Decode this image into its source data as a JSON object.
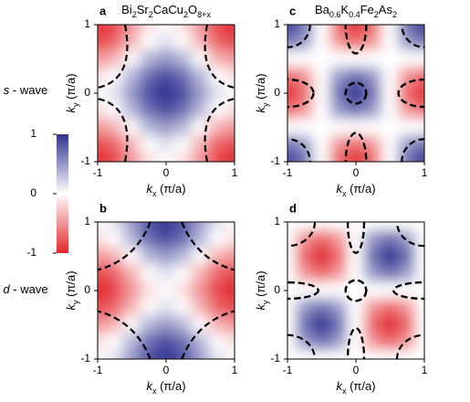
{
  "chart_data": [
    {
      "type": "heatmap",
      "panel_label": "a",
      "title_parts": [
        "Bi",
        "2",
        "Sr",
        "2",
        "CaCu",
        "2",
        "O",
        "8+x"
      ],
      "x_label_parts": [
        "k",
        "x",
        " (π/a)"
      ],
      "y_label_parts": [
        "k",
        "y",
        " (π/a)"
      ],
      "xlim": [
        -1,
        1
      ],
      "ylim": [
        -1,
        1
      ],
      "xticks": [
        -1,
        0,
        1
      ],
      "yticks": [
        -1,
        0,
        1
      ],
      "x": [
        -1,
        -0.75,
        -0.5,
        -0.25,
        0,
        0.25,
        0.5,
        0.75,
        1
      ],
      "y": [
        1,
        0.75,
        0.5,
        0.25,
        0,
        -0.25,
        -0.5,
        -0.75,
        -1
      ],
      "values": [
        [
          -1,
          -0.86,
          -0.5,
          -0.15,
          0,
          -0.15,
          -0.5,
          -0.86,
          -1
        ],
        [
          -0.86,
          -0.71,
          -0.36,
          0,
          0.15,
          0,
          -0.36,
          -0.71,
          -0.86
        ],
        [
          -0.5,
          -0.36,
          0,
          0.36,
          0.5,
          0.36,
          0,
          -0.36,
          -0.5
        ],
        [
          -0.15,
          0,
          0.36,
          0.71,
          0.86,
          0.71,
          0.36,
          0,
          -0.15
        ],
        [
          0,
          0.15,
          0.5,
          0.86,
          1,
          0.86,
          0.5,
          0.15,
          0
        ],
        [
          -0.15,
          0,
          0.36,
          0.71,
          0.86,
          0.71,
          0.36,
          0,
          -0.15
        ],
        [
          -0.5,
          -0.36,
          0,
          0.36,
          0.5,
          0.36,
          0,
          -0.36,
          -0.5
        ],
        [
          -0.86,
          -0.71,
          -0.36,
          0,
          0.15,
          0,
          -0.36,
          -0.71,
          -0.86
        ],
        [
          -1,
          -0.86,
          -0.5,
          -0.15,
          0,
          -0.15,
          -0.5,
          -0.86,
          -1
        ]
      ]
    },
    {
      "type": "heatmap",
      "panel_label": "b",
      "x_label_parts": [
        "k",
        "x",
        " (π/a)"
      ],
      "y_label_parts": [
        "k",
        "y",
        " (π/a)"
      ],
      "xlim": [
        -1,
        1
      ],
      "ylim": [
        -1,
        1
      ],
      "xticks": [
        -1,
        0,
        1
      ],
      "yticks": [
        -1,
        0,
        1
      ],
      "x": [
        -1,
        -0.75,
        -0.5,
        -0.25,
        0,
        0.25,
        0.5,
        0.75,
        1
      ],
      "y": [
        1,
        0.75,
        0.5,
        0.25,
        0,
        -0.25,
        -0.5,
        -0.75,
        -1
      ],
      "values": [
        [
          0,
          0.15,
          0.5,
          0.86,
          1,
          0.86,
          0.5,
          0.15,
          0
        ],
        [
          -0.15,
          0,
          0.36,
          0.71,
          0.86,
          0.71,
          0.36,
          0,
          -0.15
        ],
        [
          -0.5,
          -0.36,
          0,
          0.36,
          0.5,
          0.36,
          0,
          -0.36,
          -0.5
        ],
        [
          -0.86,
          -0.71,
          -0.36,
          0,
          0.15,
          0,
          -0.36,
          -0.71,
          -0.86
        ],
        [
          -1,
          -0.86,
          -0.5,
          -0.15,
          0,
          -0.15,
          -0.5,
          -0.86,
          -1
        ],
        [
          -0.86,
          -0.71,
          -0.36,
          0,
          0.15,
          0,
          -0.36,
          -0.71,
          -0.86
        ],
        [
          -0.5,
          -0.36,
          0,
          0.36,
          0.5,
          0.36,
          0,
          -0.36,
          -0.5
        ],
        [
          -0.15,
          0,
          0.36,
          0.71,
          0.86,
          0.71,
          0.36,
          0,
          -0.15
        ],
        [
          0,
          0.15,
          0.5,
          0.86,
          1,
          0.86,
          0.5,
          0.15,
          0
        ]
      ]
    },
    {
      "type": "heatmap",
      "panel_label": "c",
      "title_parts": [
        "Ba",
        "0.6",
        "K",
        "0.4",
        "Fe",
        "2",
        "As",
        "2"
      ],
      "x_label_parts": [
        "k",
        "x",
        " (π/a)"
      ],
      "y_label_parts": [
        "k",
        "y",
        " (π/a)"
      ],
      "xlim": [
        -1,
        1
      ],
      "ylim": [
        -1,
        1
      ],
      "xticks": [
        -1,
        0,
        1
      ],
      "yticks": [
        -1,
        0,
        1
      ],
      "x": [
        -1,
        -0.75,
        -0.5,
        -0.25,
        0,
        0.25,
        0.5,
        0.75,
        1
      ],
      "y": [
        1,
        0.75,
        0.5,
        0.25,
        0,
        -0.25,
        -0.5,
        -0.75,
        -1
      ],
      "values": [
        [
          1,
          0.71,
          0,
          -0.71,
          -1,
          -0.71,
          0,
          0.71,
          1
        ],
        [
          0.71,
          0.5,
          0,
          -0.5,
          -0.71,
          -0.5,
          0,
          0.5,
          0.71
        ],
        [
          0,
          0,
          0,
          0,
          0,
          0,
          0,
          0,
          0
        ],
        [
          -0.71,
          -0.5,
          0,
          0.5,
          0.71,
          0.5,
          0,
          -0.5,
          -0.71
        ],
        [
          -1,
          -0.71,
          0,
          0.71,
          1,
          0.71,
          0,
          -0.71,
          -1
        ],
        [
          -0.71,
          -0.5,
          0,
          0.5,
          0.71,
          0.5,
          0,
          -0.5,
          -0.71
        ],
        [
          0,
          0,
          0,
          0,
          0,
          0,
          0,
          0,
          0
        ],
        [
          0.71,
          0.5,
          0,
          -0.5,
          -0.71,
          -0.5,
          0,
          0.5,
          0.71
        ],
        [
          1,
          0.71,
          0,
          -0.71,
          -1,
          -0.71,
          0,
          0.71,
          1
        ]
      ]
    },
    {
      "type": "heatmap",
      "panel_label": "d",
      "x_label_parts": [
        "k",
        "x",
        " (π/a)"
      ],
      "y_label_parts": [
        "k",
        "y",
        " (π/a)"
      ],
      "xlim": [
        -1,
        1
      ],
      "ylim": [
        -1,
        1
      ],
      "xticks": [
        -1,
        0,
        1
      ],
      "yticks": [
        -1,
        0,
        1
      ],
      "x": [
        -1,
        -0.75,
        -0.5,
        -0.25,
        0,
        0.25,
        0.5,
        0.75,
        1
      ],
      "y": [
        1,
        0.75,
        0.5,
        0.25,
        0,
        -0.25,
        -0.5,
        -0.75,
        -1
      ],
      "values": [
        [
          0,
          0,
          0,
          0,
          0,
          0,
          0,
          0,
          0
        ],
        [
          0,
          -0.5,
          -0.71,
          -0.5,
          0,
          0.5,
          0.71,
          0.5,
          0
        ],
        [
          0,
          -0.71,
          -1,
          -0.71,
          0,
          0.71,
          1,
          0.71,
          0
        ],
        [
          0,
          -0.5,
          -0.71,
          -0.5,
          0,
          0.5,
          0.71,
          0.5,
          0
        ],
        [
          0,
          0,
          0,
          0,
          0,
          0,
          0,
          0,
          0
        ],
        [
          0,
          0.5,
          0.71,
          0.5,
          0,
          -0.5,
          -0.71,
          -0.5,
          0
        ],
        [
          0,
          0.71,
          1,
          0.71,
          0,
          -0.71,
          -1,
          -0.71,
          0
        ],
        [
          0,
          0.5,
          0.71,
          0.5,
          0,
          -0.5,
          -0.71,
          -0.5,
          0
        ],
        [
          0,
          0,
          0,
          0,
          0,
          0,
          0,
          0,
          0
        ]
      ]
    }
  ],
  "colorbar": {
    "zlim": [
      -1,
      1
    ],
    "ticks": [
      1,
      0,
      -1
    ],
    "colors": [
      "#e3262b",
      "#ffffff",
      "#2e3192"
    ]
  },
  "row_labels": [
    [
      "s",
      " - wave"
    ],
    [
      "d",
      " - wave"
    ]
  ]
}
